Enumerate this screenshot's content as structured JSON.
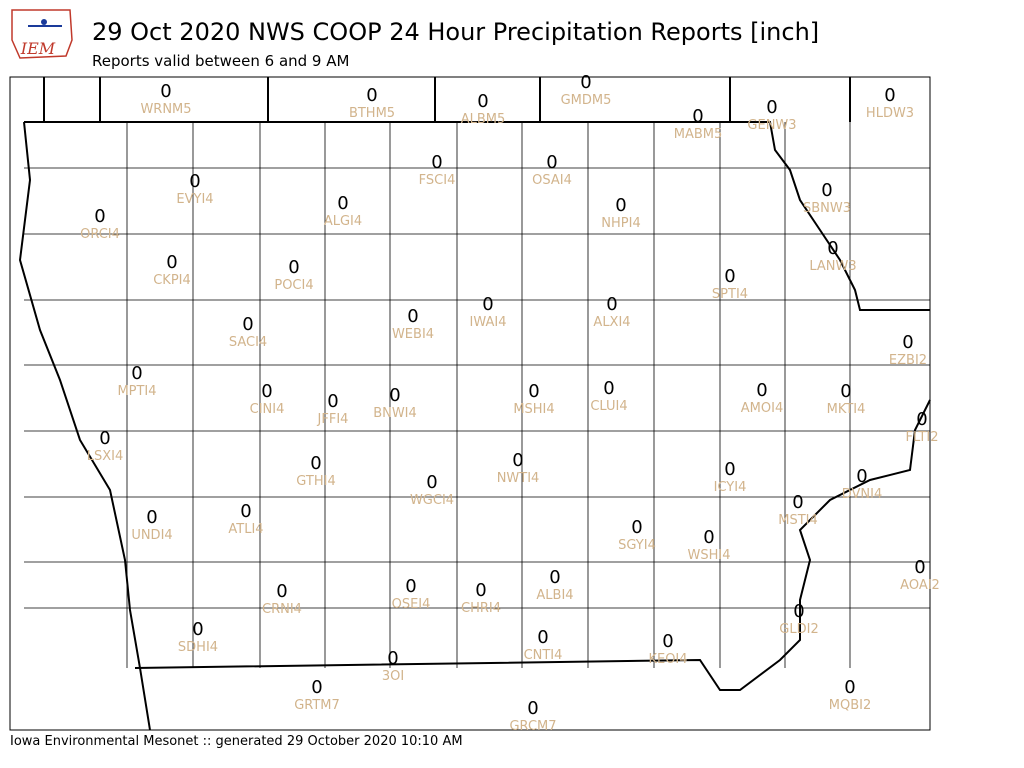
{
  "header": {
    "logo": "IEM",
    "title": "29 Oct 2020 NWS COOP 24 Hour Precipitation Reports [inch]",
    "subtitle": "Reports valid between 6 and 9 AM"
  },
  "stations": [
    {
      "id": "WRNM5",
      "value": 0
    },
    {
      "id": "BTHM5",
      "value": 0
    },
    {
      "id": "ALBM5",
      "value": 0
    },
    {
      "id": "GMDM5",
      "value": 0
    },
    {
      "id": "HLDW3",
      "value": 0
    },
    {
      "id": "MABM5",
      "value": 0
    },
    {
      "id": "GENW3",
      "value": 0
    },
    {
      "id": "FSCI4",
      "value": 0
    },
    {
      "id": "OSAI4",
      "value": 0
    },
    {
      "id": "EVYI4",
      "value": 0
    },
    {
      "id": "ALGI4",
      "value": 0
    },
    {
      "id": "ORCI4",
      "value": 0
    },
    {
      "id": "NHPI4",
      "value": 0
    },
    {
      "id": "SBNW3",
      "value": 0
    },
    {
      "id": "CKPI4",
      "value": 0
    },
    {
      "id": "POCI4",
      "value": 0
    },
    {
      "id": "LANW3",
      "value": 0
    },
    {
      "id": "SPTI4",
      "value": 0
    },
    {
      "id": "IWAI4",
      "value": 0
    },
    {
      "id": "ALXI4",
      "value": 0
    },
    {
      "id": "WEBI4",
      "value": 0
    },
    {
      "id": "SACI4",
      "value": 0
    },
    {
      "id": "EZBI2",
      "value": 0
    },
    {
      "id": "MPTI4",
      "value": 0
    },
    {
      "id": "CINI4",
      "value": 0
    },
    {
      "id": "JFFI4",
      "value": 0
    },
    {
      "id": "BNWI4",
      "value": 0
    },
    {
      "id": "MSHI4",
      "value": 0
    },
    {
      "id": "CLUI4",
      "value": 0
    },
    {
      "id": "AMOI4",
      "value": 0
    },
    {
      "id": "MKTI4",
      "value": 0
    },
    {
      "id": "FLTI2",
      "value": 0
    },
    {
      "id": "LSXI4",
      "value": 0
    },
    {
      "id": "GTHI4",
      "value": 0
    },
    {
      "id": "WGCI4",
      "value": 0
    },
    {
      "id": "NWTI4",
      "value": 0
    },
    {
      "id": "ICYI4",
      "value": 0
    },
    {
      "id": "DVNI4",
      "value": 0
    },
    {
      "id": "MSTI4",
      "value": 0
    },
    {
      "id": "UNDI4",
      "value": 0
    },
    {
      "id": "ATLI4",
      "value": 0
    },
    {
      "id": "SGYI4",
      "value": 0
    },
    {
      "id": "WSHI4",
      "value": 0
    },
    {
      "id": "AOAI2",
      "value": 0
    },
    {
      "id": "CRNI4",
      "value": 0
    },
    {
      "id": "OSEI4",
      "value": 0
    },
    {
      "id": "CHRI4",
      "value": 0
    },
    {
      "id": "ALBI4",
      "value": 0
    },
    {
      "id": "GLDI2",
      "value": 0
    },
    {
      "id": "SDHI4",
      "value": 0
    },
    {
      "id": "CNTI4",
      "value": 0
    },
    {
      "id": "KEOI4",
      "value": 0
    },
    {
      "id": "3OI",
      "value": 0
    },
    {
      "id": "GRTM7",
      "value": 0
    },
    {
      "id": "MQBI2",
      "value": 0
    },
    {
      "id": "GRCM7",
      "value": 0
    }
  ],
  "footer": "Iowa Environmental Mesonet :: generated 29 October 2020 10:10 AM"
}
